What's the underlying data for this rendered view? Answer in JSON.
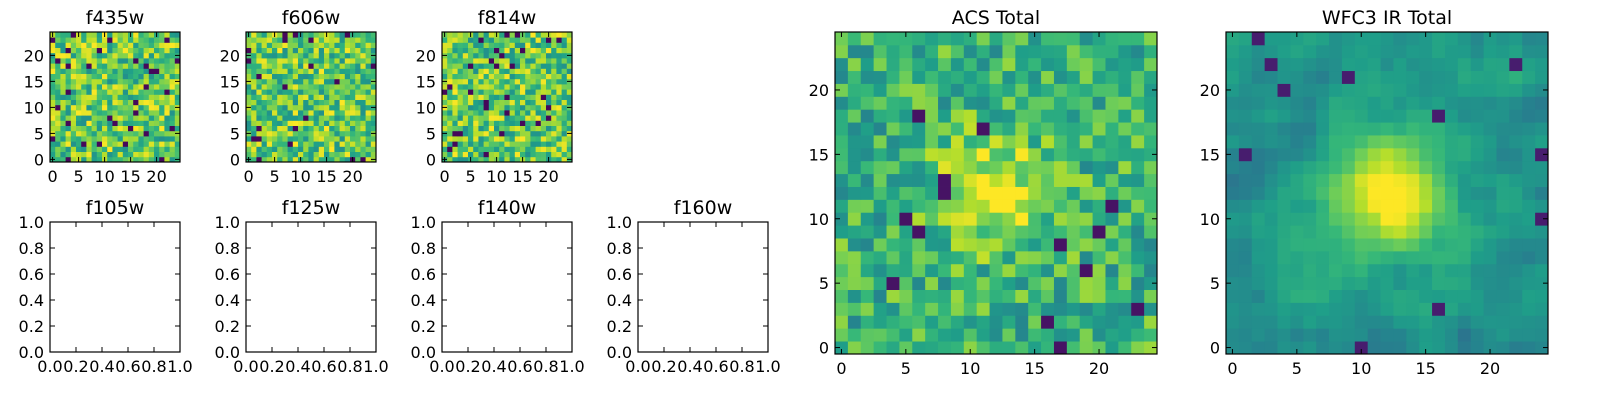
{
  "chart_data": [
    {
      "type": "heatmap",
      "title": "f435w",
      "xlim": [
        -0.5,
        24.5
      ],
      "ylim": [
        -0.5,
        24.5
      ],
      "xticks": [
        0,
        5,
        10,
        15,
        20
      ],
      "yticks": [
        0,
        5,
        10,
        15,
        20
      ],
      "grid_size": 25,
      "colormap": "viridis",
      "pattern": "noise",
      "seed": 11
    },
    {
      "type": "heatmap",
      "title": "f606w",
      "xlim": [
        -0.5,
        24.5
      ],
      "ylim": [
        -0.5,
        24.5
      ],
      "xticks": [
        0,
        5,
        10,
        15,
        20
      ],
      "yticks": [
        0,
        5,
        10,
        15,
        20
      ],
      "grid_size": 25,
      "colormap": "viridis",
      "pattern": "noise",
      "seed": 23
    },
    {
      "type": "heatmap",
      "title": "f814w",
      "xlim": [
        -0.5,
        24.5
      ],
      "ylim": [
        -0.5,
        24.5
      ],
      "xticks": [
        0,
        5,
        10,
        15,
        20
      ],
      "yticks": [
        0,
        5,
        10,
        15,
        20
      ],
      "grid_size": 25,
      "colormap": "viridis",
      "pattern": "noise",
      "seed": 37
    },
    {
      "type": "empty",
      "title": "f105w",
      "xlim": [
        0,
        1
      ],
      "ylim": [
        0,
        1
      ],
      "xticks": [
        "0.0",
        "0.2",
        "0.4",
        "0.6",
        "0.8",
        "1.0"
      ],
      "yticks": [
        "0.0",
        "0.2",
        "0.4",
        "0.6",
        "0.8",
        "1.0"
      ]
    },
    {
      "type": "empty",
      "title": "f125w",
      "xlim": [
        0,
        1
      ],
      "ylim": [
        0,
        1
      ],
      "xticks": [
        "0.0",
        "0.2",
        "0.4",
        "0.6",
        "0.8",
        "1.0"
      ],
      "yticks": [
        "0.0",
        "0.2",
        "0.4",
        "0.6",
        "0.8",
        "1.0"
      ]
    },
    {
      "type": "empty",
      "title": "f140w",
      "xlim": [
        0,
        1
      ],
      "ylim": [
        0,
        1
      ],
      "xticks": [
        "0.0",
        "0.2",
        "0.4",
        "0.6",
        "0.8",
        "1.0"
      ],
      "yticks": [
        "0.0",
        "0.2",
        "0.4",
        "0.6",
        "0.8",
        "1.0"
      ]
    },
    {
      "type": "empty",
      "title": "f160w",
      "xlim": [
        0,
        1
      ],
      "ylim": [
        0,
        1
      ],
      "xticks": [
        "0.0",
        "0.2",
        "0.4",
        "0.6",
        "0.8",
        "1.0"
      ],
      "yticks": [
        "0.0",
        "0.2",
        "0.4",
        "0.6",
        "0.8",
        "1.0"
      ]
    },
    {
      "type": "heatmap",
      "title": "ACS Total",
      "xlim": [
        -0.5,
        24.5
      ],
      "ylim": [
        -0.5,
        24.5
      ],
      "xticks": [
        0,
        5,
        10,
        15,
        20
      ],
      "yticks": [
        0,
        5,
        10,
        15,
        20
      ],
      "grid_size": 25,
      "colormap": "viridis",
      "pattern": "noise_with_central_peak",
      "peak_center": [
        12,
        12
      ],
      "seed": 51
    },
    {
      "type": "heatmap",
      "title": "WFC3 IR Total",
      "xlim": [
        -0.5,
        24.5
      ],
      "ylim": [
        -0.5,
        24.5
      ],
      "xticks": [
        0,
        5,
        10,
        15,
        20
      ],
      "yticks": [
        0,
        5,
        10,
        15,
        20
      ],
      "grid_size": 25,
      "colormap": "viridis",
      "pattern": "smooth_with_central_peak",
      "peak_center": [
        12,
        12
      ],
      "seed": 67
    }
  ]
}
